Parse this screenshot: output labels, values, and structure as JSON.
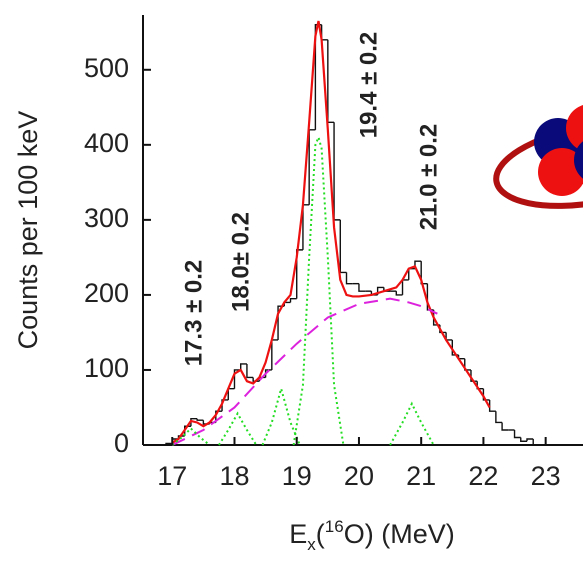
{
  "chart_data": {
    "type": "histogram",
    "y_label": "Counts per 100 keV",
    "x_label": {
      "base": "E",
      "sub": "x",
      "pre": "(",
      "sup": "16",
      "post": "O) (MeV)"
    },
    "xlim": [
      16.53,
      23.6
    ],
    "ylim": [
      0,
      573
    ],
    "xticks": [
      17,
      18,
      19,
      20,
      21,
      22,
      23
    ],
    "yticks": [
      0,
      100,
      200,
      300,
      400,
      500
    ],
    "bins": [
      16.8,
      16.9,
      17.0,
      17.1,
      17.2,
      17.3,
      17.4,
      17.5,
      17.6,
      17.7,
      17.8,
      17.9,
      18.0,
      18.1,
      18.2,
      18.3,
      18.4,
      18.5,
      18.6,
      18.7,
      18.8,
      18.9,
      19.0,
      19.1,
      19.2,
      19.3,
      19.4,
      19.5,
      19.6,
      19.7,
      19.8,
      19.9,
      20.0,
      20.1,
      20.2,
      20.3,
      20.4,
      20.5,
      20.6,
      20.7,
      20.8,
      20.9,
      21.0,
      21.1,
      21.2,
      21.3,
      21.4,
      21.5,
      21.6,
      21.7,
      21.8,
      21.9,
      22.0,
      22.1,
      22.2,
      22.3,
      22.4,
      22.5,
      22.6,
      22.7,
      22.8,
      22.9
    ],
    "values": [
      0,
      2,
      8,
      12,
      25,
      35,
      33,
      28,
      30,
      45,
      60,
      75,
      100,
      108,
      90,
      85,
      90,
      100,
      140,
      185,
      190,
      195,
      260,
      320,
      420,
      560,
      540,
      430,
      300,
      230,
      215,
      215,
      205,
      205,
      200,
      210,
      205,
      205,
      200,
      220,
      235,
      245,
      215,
      180,
      160,
      150,
      140,
      120,
      115,
      100,
      85,
      75,
      60,
      45,
      30,
      20,
      20,
      10,
      5,
      8,
      0
    ],
    "color": "#111111",
    "series": [
      {
        "color": "#ee1111",
        "dash": "none",
        "width": 2.2,
        "x": [
          17.0,
          17.1,
          17.2,
          17.3,
          17.4,
          17.5,
          17.6,
          17.7,
          17.8,
          17.9,
          18.0,
          18.1,
          18.2,
          18.3,
          18.4,
          18.5,
          18.6,
          18.7,
          18.8,
          18.9,
          19.0,
          19.1,
          19.2,
          19.3,
          19.35,
          19.4,
          19.5,
          19.6,
          19.7,
          19.8,
          19.9,
          20.0,
          20.2,
          20.4,
          20.6,
          20.7,
          20.8,
          20.9,
          21.0,
          21.1,
          21.2,
          21.3,
          21.4,
          21.6,
          21.8,
          22.0,
          22.1
        ],
        "values": [
          3,
          8,
          20,
          32,
          30,
          25,
          30,
          40,
          55,
          75,
          95,
          100,
          85,
          82,
          90,
          110,
          140,
          175,
          190,
          200,
          250,
          320,
          430,
          545,
          565,
          540,
          420,
          290,
          220,
          200,
          198,
          198,
          200,
          205,
          210,
          220,
          235,
          238,
          220,
          190,
          170,
          155,
          140,
          115,
          90,
          65,
          50
        ]
      },
      {
        "color": "#dd22dd",
        "dash": "14 8",
        "width": 2,
        "x": [
          17.0,
          17.5,
          18.0,
          18.5,
          19.0,
          19.5,
          20.0,
          20.5,
          20.8,
          21.0,
          21.26
        ],
        "values": [
          0,
          20,
          50,
          95,
          135,
          170,
          188,
          195,
          190,
          185,
          175
        ]
      },
      {
        "color": "#22dd22",
        "dash": "2 3",
        "width": 2,
        "x": [
          17.0,
          17.15,
          17.3,
          17.45,
          17.6
        ],
        "values": [
          0,
          10,
          22,
          10,
          0
        ]
      },
      {
        "color": "#22dd22",
        "dash": "2 3",
        "width": 2,
        "x": [
          17.75,
          17.9,
          18.05,
          18.2,
          18.35
        ],
        "values": [
          0,
          20,
          42,
          20,
          0
        ]
      },
      {
        "color": "#22dd22",
        "dash": "2 3",
        "width": 2,
        "x": [
          18.45,
          18.6,
          18.75,
          18.9,
          19.05
        ],
        "values": [
          0,
          30,
          75,
          30,
          0
        ]
      },
      {
        "color": "#22dd22",
        "dash": "2 3",
        "width": 2,
        "x": [
          18.95,
          19.1,
          19.2,
          19.3,
          19.35,
          19.4,
          19.5,
          19.6,
          19.75
        ],
        "values": [
          0,
          80,
          250,
          400,
          410,
          395,
          250,
          80,
          0
        ]
      },
      {
        "color": "#22dd22",
        "dash": "2 3",
        "width": 2,
        "x": [
          20.5,
          20.7,
          20.85,
          21.0,
          21.2
        ],
        "values": [
          0,
          30,
          55,
          30,
          0
        ]
      }
    ],
    "annotations": [
      "17.3 ± 0.2",
      "18.0± 0.2",
      "19.4 ± 0.2",
      "21.0 ± 0.2"
    ]
  }
}
